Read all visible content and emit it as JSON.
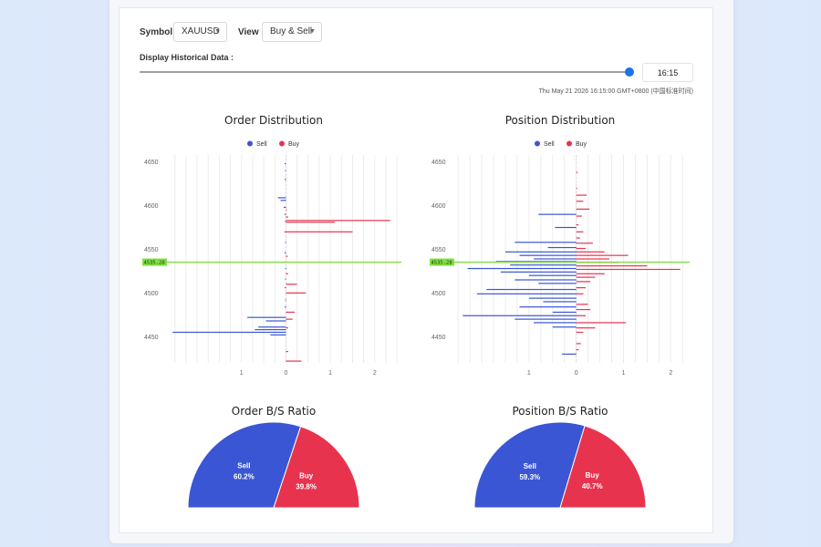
{
  "controls": {
    "symbol_label": "Symbol :",
    "symbol_value": "XAUUSD",
    "view_label": "View :",
    "view_value": "Buy & Sell",
    "historical_label": "Display Historical Data :",
    "slider_value_pct": 100,
    "time_value": "16:15",
    "timestamp": "Thu May 21 2026 16:15:00 GMT+0800 (中国标准时间)"
  },
  "colors": {
    "sell": "#3a56d4",
    "buy": "#e8334f",
    "current_price_line": "#7ee043"
  },
  "chart_data": [
    {
      "type": "bar",
      "title": "Order Distribution",
      "orientation": "horizontal",
      "legend": [
        "Sell",
        "Buy"
      ],
      "legend_position": "top-center",
      "y_ticks": [
        4650,
        4600,
        4550,
        4500,
        4450
      ],
      "ylim": [
        4420,
        4658
      ],
      "x_ticks": [
        -1,
        0,
        1,
        2
      ],
      "x_tick_labels": [
        "1",
        "0",
        "1",
        "2"
      ],
      "xlim": [
        -2.7,
        2.6
      ],
      "current_price": 4535.28,
      "current_price_label": "4535.28",
      "sell": [
        [
          4648,
          -0.03
        ],
        [
          4640,
          -0.02
        ],
        [
          4630,
          -0.03
        ],
        [
          4609,
          -0.18
        ],
        [
          4606,
          -0.12
        ],
        [
          4598,
          -0.05
        ],
        [
          4590,
          -0.03
        ],
        [
          4582,
          -0.02
        ],
        [
          4570,
          -0.03
        ],
        [
          4558,
          -0.02
        ],
        [
          4546,
          -0.03
        ],
        [
          4528,
          -0.02
        ],
        [
          4516,
          -0.02
        ],
        [
          4506,
          -0.03
        ],
        [
          4492,
          -0.02
        ],
        [
          4484,
          -0.03
        ],
        [
          4472,
          -0.87
        ],
        [
          4468,
          -0.45
        ],
        [
          4461,
          -0.62
        ],
        [
          4458,
          -0.7
        ],
        [
          4455,
          -2.55
        ],
        [
          4452,
          -0.35
        ]
      ],
      "buy": [
        [
          4595,
          0.02
        ],
        [
          4587,
          0.05
        ],
        [
          4583,
          2.35
        ],
        [
          4581,
          1.1
        ],
        [
          4570,
          1.5
        ],
        [
          4542,
          0.04
        ],
        [
          4522,
          0.05
        ],
        [
          4510,
          0.25
        ],
        [
          4500,
          0.45
        ],
        [
          4478,
          0.2
        ],
        [
          4470,
          0.15
        ],
        [
          4460,
          0.05
        ],
        [
          4433,
          0.05
        ],
        [
          4422,
          0.35
        ]
      ]
    },
    {
      "type": "bar",
      "title": "Position Distribution",
      "orientation": "horizontal",
      "legend": [
        "Sell",
        "Buy"
      ],
      "legend_position": "top-center",
      "y_ticks": [
        4650,
        4600,
        4550,
        4500,
        4450
      ],
      "ylim": [
        4420,
        4658
      ],
      "x_ticks": [
        -1,
        0,
        1,
        2
      ],
      "x_tick_labels": [
        "1",
        "0",
        "1",
        "2"
      ],
      "xlim": [
        -2.6,
        2.4
      ],
      "current_price": 4535.28,
      "current_price_label": "4535.28",
      "sell": [
        [
          4590,
          -0.8
        ],
        [
          4575,
          -0.45
        ],
        [
          4558,
          -1.3
        ],
        [
          4552,
          -0.6
        ],
        [
          4547,
          -1.5
        ],
        [
          4543,
          -1.2
        ],
        [
          4539,
          -0.9
        ],
        [
          4536,
          -1.7
        ],
        [
          4532,
          -1.4
        ],
        [
          4528,
          -2.3
        ],
        [
          4524,
          -1.6
        ],
        [
          4520,
          -1.0
        ],
        [
          4515,
          -1.3
        ],
        [
          4511,
          -0.8
        ],
        [
          4504,
          -1.9
        ],
        [
          4499,
          -2.1
        ],
        [
          4494,
          -1.0
        ],
        [
          4490,
          -0.7
        ],
        [
          4484,
          -1.2
        ],
        [
          4478,
          -0.5
        ],
        [
          4474,
          -2.4
        ],
        [
          4470,
          -1.3
        ],
        [
          4466,
          -0.9
        ],
        [
          4461,
          -0.5
        ],
        [
          4430,
          -0.3
        ]
      ],
      "buy": [
        [
          4638,
          0.03
        ],
        [
          4620,
          0.02
        ],
        [
          4612,
          0.22
        ],
        [
          4605,
          0.15
        ],
        [
          4596,
          0.28
        ],
        [
          4588,
          0.12
        ],
        [
          4578,
          0.05
        ],
        [
          4570,
          0.15
        ],
        [
          4563,
          0.08
        ],
        [
          4557,
          0.35
        ],
        [
          4551,
          0.2
        ],
        [
          4547,
          0.6
        ],
        [
          4543,
          1.1
        ],
        [
          4539,
          0.7
        ],
        [
          4535,
          0.9
        ],
        [
          4531,
          1.5
        ],
        [
          4527,
          2.2
        ],
        [
          4522,
          0.6
        ],
        [
          4518,
          0.4
        ],
        [
          4513,
          0.3
        ],
        [
          4506,
          0.2
        ],
        [
          4499,
          0.15
        ],
        [
          4487,
          0.25
        ],
        [
          4481,
          0.3
        ],
        [
          4474,
          0.2
        ],
        [
          4466,
          1.05
        ],
        [
          4460,
          0.4
        ],
        [
          4455,
          0.15
        ],
        [
          4442,
          0.1
        ],
        [
          4435,
          0.05
        ]
      ]
    },
    {
      "type": "pie",
      "title": "Order B/S Ratio",
      "slices": [
        {
          "label": "Sell",
          "value": 60.2,
          "display": "60.2%"
        },
        {
          "label": "Buy",
          "value": 39.8,
          "display": "39.8%"
        }
      ]
    },
    {
      "type": "pie",
      "title": "Position B/S Ratio",
      "slices": [
        {
          "label": "Sell",
          "value": 59.3,
          "display": "59.3%"
        },
        {
          "label": "Buy",
          "value": 40.7,
          "display": "40.7%"
        }
      ]
    }
  ]
}
